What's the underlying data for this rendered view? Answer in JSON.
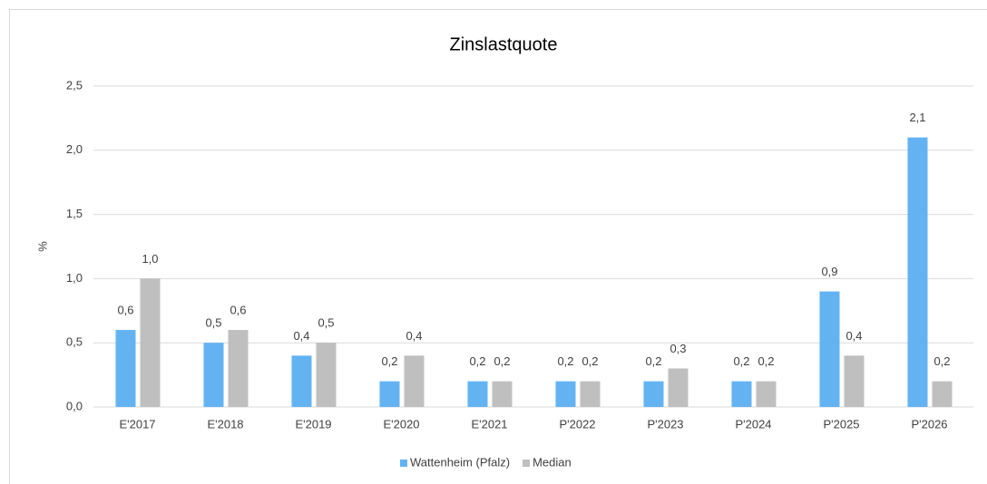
{
  "chart_data": {
    "type": "bar",
    "title": "Zinslastquote",
    "y_label": "%",
    "categories": [
      "E'2017",
      "E'2018",
      "E'2019",
      "E'2020",
      "E'2021",
      "P'2022",
      "P'2023",
      "P'2024",
      "P'2025",
      "P'2026"
    ],
    "series": [
      {
        "name": "Wattenheim (Pfalz)",
        "color": "#63b3f3",
        "values": [
          0.6,
          0.5,
          0.4,
          0.2,
          0.2,
          0.2,
          0.2,
          0.2,
          0.9,
          2.1
        ],
        "value_labels": [
          "0,6",
          "0,5",
          "0,4",
          "0,2",
          "0,2",
          "0,2",
          "0,2",
          "0,2",
          "0,9",
          "2,1"
        ]
      },
      {
        "name": "Median",
        "color": "#bfbfbf",
        "values": [
          1.0,
          0.6,
          0.5,
          0.4,
          0.2,
          0.2,
          0.3,
          0.2,
          0.4,
          0.2
        ],
        "value_labels": [
          "1,0",
          "0,6",
          "0,5",
          "0,4",
          "0,2",
          "0,2",
          "0,3",
          "0,2",
          "0,4",
          "0,2"
        ]
      }
    ],
    "ylim": [
      0,
      2.5
    ],
    "yticks": [
      {
        "value": 0,
        "label": "0,0"
      },
      {
        "value": 0.5,
        "label": "0,5"
      },
      {
        "value": 1,
        "label": "1,0"
      },
      {
        "value": 1.5,
        "label": "1,5"
      },
      {
        "value": 2,
        "label": "2,0"
      },
      {
        "value": 2.5,
        "label": "2,5"
      }
    ],
    "grid": true,
    "legend": "bottom"
  }
}
